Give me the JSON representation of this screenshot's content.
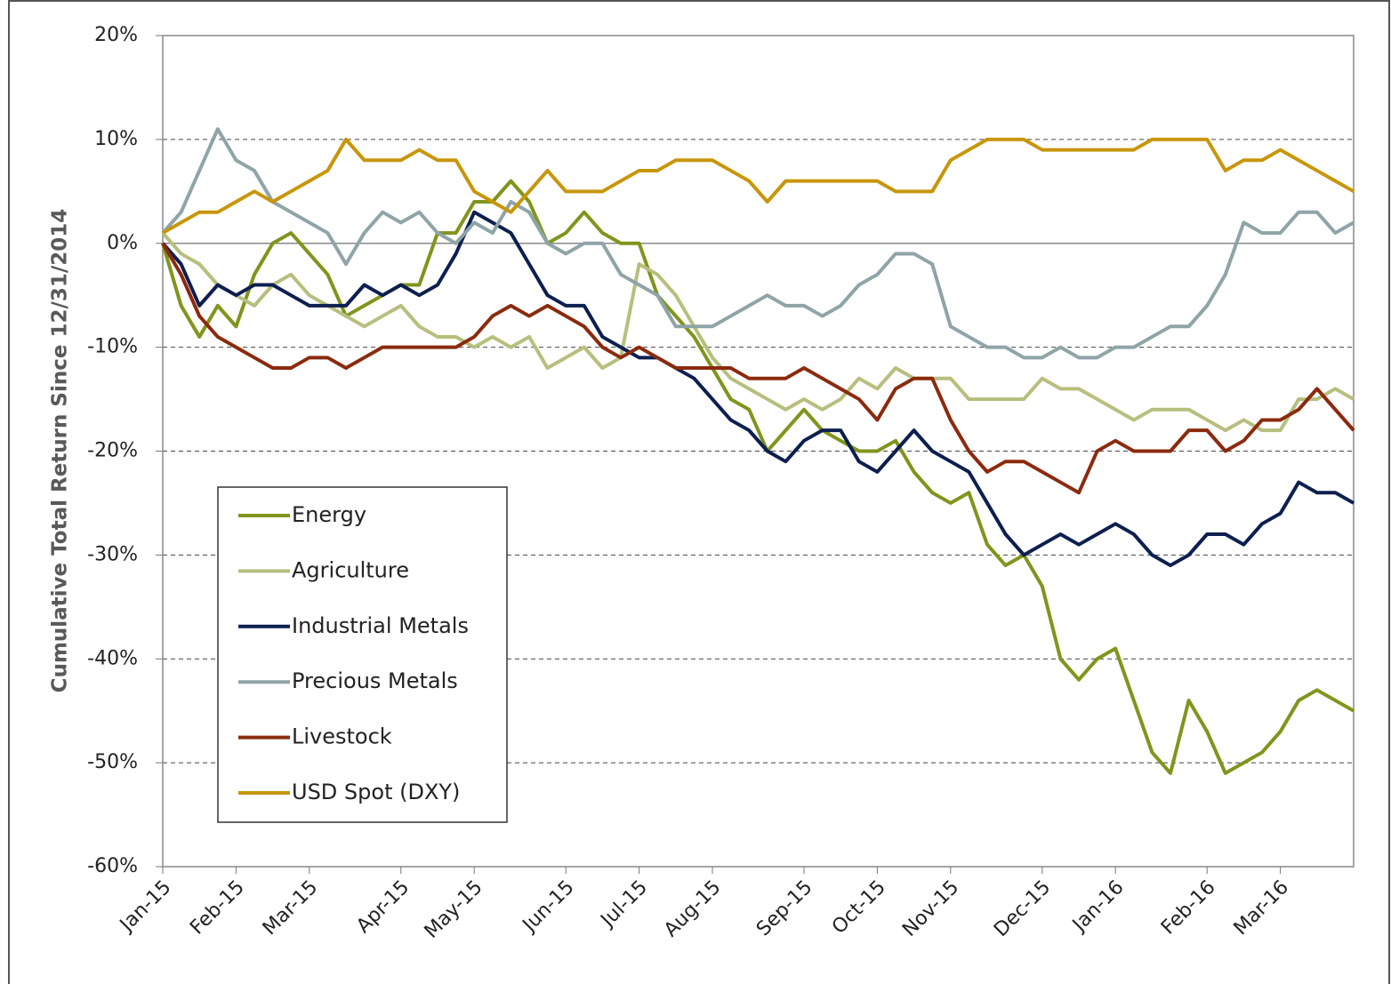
{
  "chart_data": {
    "type": "line",
    "y_label": "Cumulative Total Return Since 12/31/2014",
    "categories": [
      "Jan-15",
      null,
      null,
      null,
      "Feb-15",
      null,
      null,
      null,
      "Mar-15",
      null,
      null,
      null,
      null,
      "Apr-15",
      null,
      null,
      null,
      "May-15",
      null,
      null,
      null,
      null,
      "Jun-15",
      null,
      null,
      null,
      "Jul-15",
      null,
      null,
      null,
      "Aug-15",
      null,
      null,
      null,
      null,
      "Sep-15",
      null,
      null,
      null,
      "Oct-15",
      null,
      null,
      null,
      "Nov-15",
      null,
      null,
      null,
      null,
      "Dec-15",
      null,
      null,
      null,
      "Jan-16",
      null,
      null,
      null,
      null,
      "Feb-16",
      null,
      null,
      null,
      "Mar-16",
      null,
      null,
      null,
      null
    ],
    "series": [
      {
        "name": "Energy",
        "color": "#7f951c",
        "values": [
          0,
          -6,
          -9,
          -6,
          -8,
          -3,
          0,
          1,
          -1,
          -3,
          -7,
          -6,
          -5,
          -4,
          -4,
          1,
          1,
          4,
          4,
          6,
          4,
          0,
          1,
          3,
          1,
          0,
          0,
          -5,
          -7,
          -9,
          -12,
          -15,
          -16,
          -20,
          -18,
          -16,
          -18,
          -19,
          -20,
          -20,
          -19,
          -22,
          -24,
          -25,
          -24,
          -29,
          -31,
          -30,
          -33,
          -40,
          -42,
          -40,
          -39,
          -44,
          -49,
          -51,
          -44,
          -47,
          -51,
          -50,
          -49,
          -47,
          -44,
          -43,
          -44,
          -45
        ]
      },
      {
        "name": "Agriculture",
        "color": "#b6bf7d",
        "values": [
          1,
          -1,
          -2,
          -4,
          -5,
          -6,
          -4,
          -3,
          -5,
          -6,
          -7,
          -8,
          -7,
          -6,
          -8,
          -9,
          -9,
          -10,
          -9,
          -10,
          -9,
          -12,
          -11,
          -10,
          -12,
          -11,
          -2,
          -3,
          -5,
          -8,
          -11,
          -13,
          -14,
          -15,
          -16,
          -15,
          -16,
          -15,
          -13,
          -14,
          -12,
          -13,
          -13,
          -13,
          -15,
          -15,
          -15,
          -15,
          -13,
          -14,
          -14,
          -15,
          -16,
          -17,
          -16,
          -16,
          -16,
          -17,
          -18,
          -17,
          -18,
          -18,
          -15,
          -15,
          -14,
          -15
        ]
      },
      {
        "name": "Industrial Metals",
        "color": "#0d1f4f",
        "values": [
          0,
          -2,
          -6,
          -4,
          -5,
          -4,
          -4,
          -5,
          -6,
          -6,
          -6,
          -4,
          -5,
          -4,
          -5,
          -4,
          -1,
          3,
          2,
          1,
          -2,
          -5,
          -6,
          -6,
          -9,
          -10,
          -11,
          -11,
          -12,
          -13,
          -15,
          -17,
          -18,
          -20,
          -21,
          -19,
          -18,
          -18,
          -21,
          -22,
          -20,
          -18,
          -20,
          -21,
          -22,
          -25,
          -28,
          -30,
          -29,
          -28,
          -29,
          -28,
          -27,
          -28,
          -30,
          -31,
          -30,
          -28,
          -28,
          -29,
          -27,
          -26,
          -23,
          -24,
          -24,
          -25
        ]
      },
      {
        "name": "Precious Metals",
        "color": "#8fa4a7",
        "values": [
          1,
          3,
          7,
          11,
          8,
          7,
          4,
          3,
          2,
          1,
          -2,
          1,
          3,
          2,
          3,
          1,
          0,
          2,
          1,
          4,
          3,
          0,
          -1,
          0,
          0,
          -3,
          -4,
          -5,
          -8,
          -8,
          -8,
          -7,
          -6,
          -5,
          -6,
          -6,
          -7,
          -6,
          -4,
          -3,
          -1,
          -1,
          -2,
          -8,
          -9,
          -10,
          -10,
          -11,
          -11,
          -10,
          -11,
          -11,
          -10,
          -10,
          -9,
          -8,
          -8,
          -6,
          -3,
          2,
          1,
          1,
          3,
          3,
          1,
          2
        ]
      },
      {
        "name": "Livestock",
        "color": "#8b2a0e",
        "values": [
          0,
          -3,
          -7,
          -9,
          -10,
          -11,
          -12,
          -12,
          -11,
          -11,
          -12,
          -11,
          -10,
          -10,
          -10,
          -10,
          -10,
          -9,
          -7,
          -6,
          -7,
          -6,
          -7,
          -8,
          -10,
          -11,
          -10,
          -11,
          -12,
          -12,
          -12,
          -12,
          -13,
          -13,
          -13,
          -12,
          -13,
          -14,
          -15,
          -17,
          -14,
          -13,
          -13,
          -17,
          -20,
          -22,
          -21,
          -21,
          -22,
          -23,
          -24,
          -20,
          -19,
          -20,
          -20,
          -20,
          -18,
          -18,
          -20,
          -19,
          -17,
          -17,
          -16,
          -14,
          -16,
          -18
        ]
      },
      {
        "name": "USD Spot (DXY)",
        "color": "#c8960a",
        "values": [
          1,
          2,
          3,
          3,
          4,
          5,
          4,
          5,
          6,
          7,
          10,
          8,
          8,
          8,
          9,
          8,
          8,
          5,
          4,
          3,
          5,
          7,
          5,
          5,
          5,
          6,
          7,
          7,
          8,
          8,
          8,
          7,
          6,
          4,
          6,
          6,
          6,
          6,
          6,
          6,
          5,
          5,
          5,
          8,
          9,
          10,
          10,
          10,
          9,
          9,
          9,
          9,
          9,
          9,
          10,
          10,
          10,
          10,
          7,
          8,
          8,
          9,
          8,
          7,
          6,
          5
        ]
      }
    ],
    "ylim": [
      -60,
      20
    ],
    "yticks": [
      {
        "value": -60,
        "label": "-60%"
      },
      {
        "value": -50,
        "label": "-50%"
      },
      {
        "value": -40,
        "label": "-40%"
      },
      {
        "value": -30,
        "label": "-30%"
      },
      {
        "value": -20,
        "label": "-20%"
      },
      {
        "value": -10,
        "label": "-10%"
      },
      {
        "value": 0,
        "label": "0%"
      },
      {
        "value": 10,
        "label": "10%"
      },
      {
        "value": 20,
        "label": "20%"
      }
    ],
    "grid": true,
    "legend": "lower left"
  }
}
